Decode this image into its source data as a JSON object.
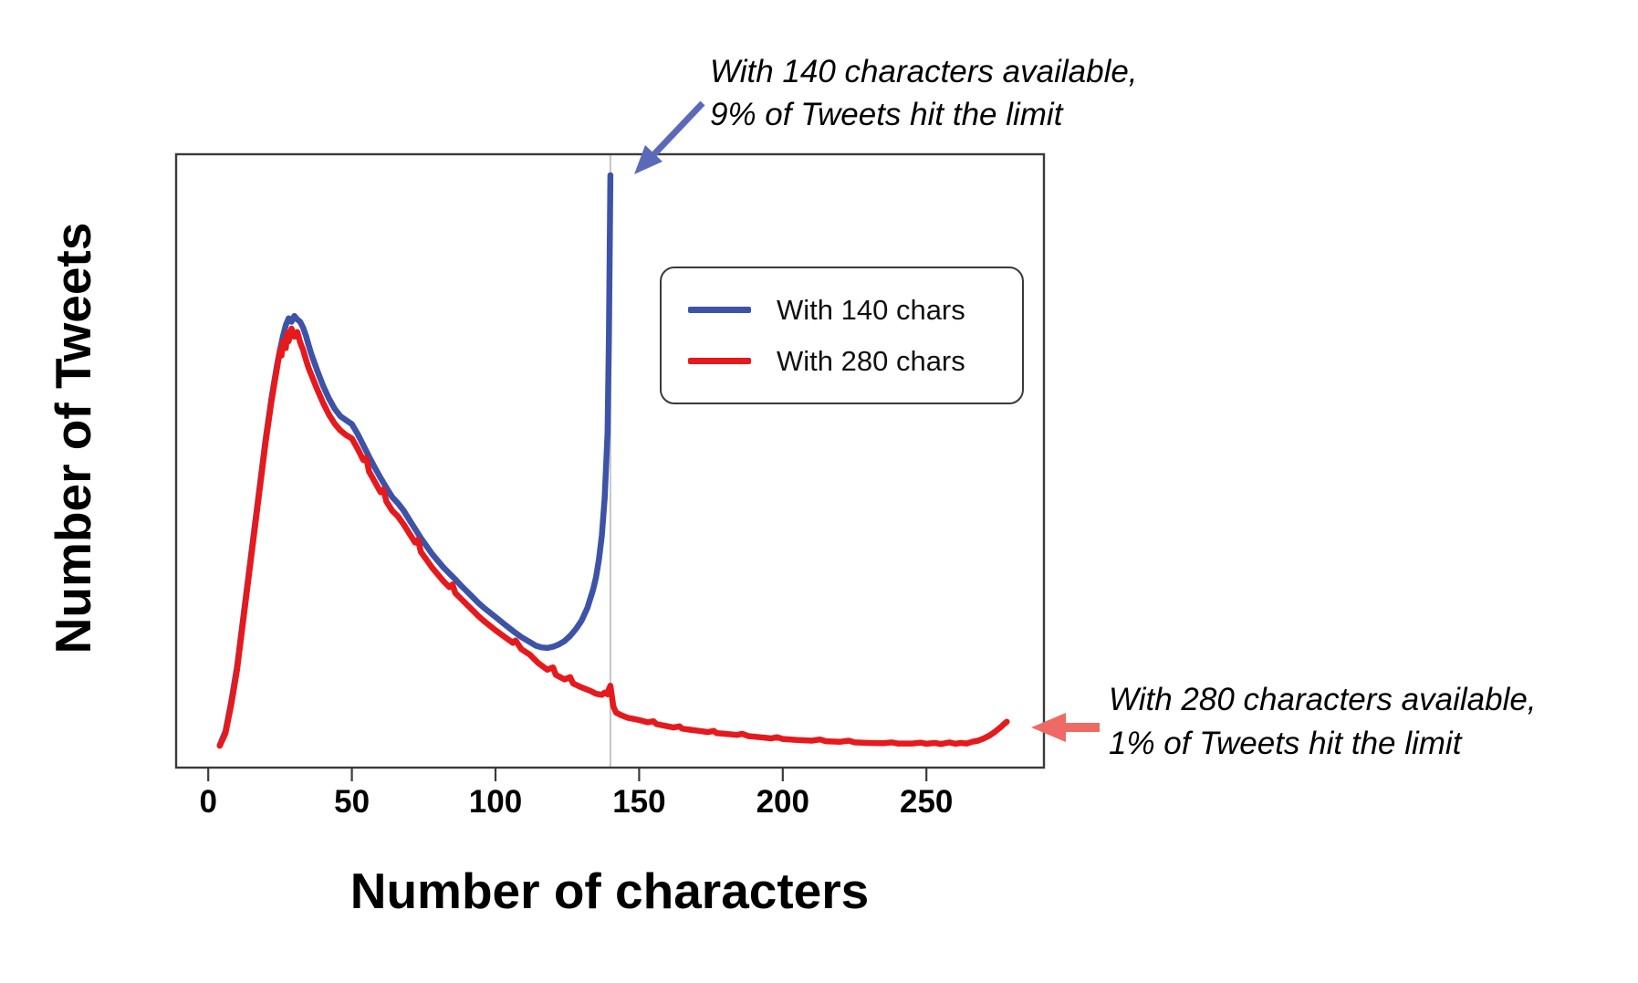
{
  "figure": {
    "background_color": "#ffffff",
    "plot_border_color": "#3a3a3a",
    "limit_gridline_color": "#c9c9c9"
  },
  "legend": {
    "position": "inside-top-right",
    "items": [
      {
        "label": "With 140 chars",
        "color": "#3c53a8"
      },
      {
        "label": "With 280 chars",
        "color": "#e6191c"
      }
    ]
  },
  "annotations": {
    "limit140": {
      "line1": "With 140 characters available,",
      "line2": "9% of Tweets hit the limit",
      "arrow_color": "#5b6ab8",
      "points_to": "spike of blue curve at x=140"
    },
    "limit280": {
      "line1": "With 280 characters available,",
      "line2": "1% of Tweets hit the limit",
      "arrow_color": "#ef6a64",
      "points_to": "uptick of red curve at x=280"
    }
  },
  "chart_data": {
    "type": "line",
    "title": "",
    "xlabel": "Number of characters",
    "ylabel": "Number of Tweets",
    "x_ticks": [
      0,
      50,
      100,
      150,
      200,
      250
    ],
    "xlim": [
      -11,
      291
    ],
    "ylim": [
      0,
      107
    ],
    "grid": false,
    "limit_line_x": 140,
    "y_scale_note": "relative tweet counts, 100 = height of the 140-char spike",
    "series": [
      {
        "name": "With 140 chars",
        "color": "#3c53a8",
        "points": [
          [
            4,
            0.4
          ],
          [
            6,
            2.8
          ],
          [
            8,
            8
          ],
          [
            10,
            14
          ],
          [
            12,
            22
          ],
          [
            14,
            30
          ],
          [
            16,
            38
          ],
          [
            18,
            46
          ],
          [
            20,
            54
          ],
          [
            22,
            61
          ],
          [
            23,
            64
          ],
          [
            24,
            67
          ],
          [
            25,
            69.5
          ],
          [
            26,
            71.8
          ],
          [
            27,
            73.8
          ],
          [
            28,
            75
          ],
          [
            29,
            74.4
          ],
          [
            30,
            75.4
          ],
          [
            31,
            74.8
          ],
          [
            32,
            74.4
          ],
          [
            33,
            73.4
          ],
          [
            34,
            72
          ],
          [
            35,
            70.2
          ],
          [
            36,
            68.6
          ],
          [
            38,
            65.8
          ],
          [
            40,
            63.2
          ],
          [
            42,
            61
          ],
          [
            44,
            59.2
          ],
          [
            46,
            57.9
          ],
          [
            48,
            57.2
          ],
          [
            50,
            56.5
          ],
          [
            52,
            54.8
          ],
          [
            54,
            52.8
          ],
          [
            56,
            50.8
          ],
          [
            58,
            48.9
          ],
          [
            60,
            47.1
          ],
          [
            62,
            45.4
          ],
          [
            64,
            43.8
          ],
          [
            66,
            42.7
          ],
          [
            68,
            41.4
          ],
          [
            70,
            39.8
          ],
          [
            72,
            38.2
          ],
          [
            74,
            36.6
          ],
          [
            76,
            35.2
          ],
          [
            78,
            33.8
          ],
          [
            80,
            32.6
          ],
          [
            82,
            31.4
          ],
          [
            84,
            30.4
          ],
          [
            86,
            29.4
          ],
          [
            88,
            28.3
          ],
          [
            90,
            27.3
          ],
          [
            92,
            26.3
          ],
          [
            94,
            25.3
          ],
          [
            96,
            24.4
          ],
          [
            98,
            23.6
          ],
          [
            100,
            22.8
          ],
          [
            103,
            21.6
          ],
          [
            106,
            20.4
          ],
          [
            109,
            19.3
          ],
          [
            112,
            18.4
          ],
          [
            114,
            17.8
          ],
          [
            116,
            17.5
          ],
          [
            118,
            17.4
          ],
          [
            120,
            17.6
          ],
          [
            122,
            18
          ],
          [
            124,
            18.6
          ],
          [
            126,
            19.5
          ],
          [
            128,
            20.7
          ],
          [
            130,
            22.2
          ],
          [
            132,
            24.4
          ],
          [
            134,
            27.6
          ],
          [
            135,
            29.8
          ],
          [
            136,
            32.8
          ],
          [
            137,
            37
          ],
          [
            138,
            43.5
          ],
          [
            139,
            55
          ],
          [
            139.5,
            72
          ],
          [
            140,
            100
          ]
        ]
      },
      {
        "name": "With 280 chars",
        "color": "#e6191c",
        "points": [
          [
            4,
            0.3
          ],
          [
            6,
            2.5
          ],
          [
            8,
            7.5
          ],
          [
            10,
            13.5
          ],
          [
            12,
            21.5
          ],
          [
            14,
            29.5
          ],
          [
            16,
            37.5
          ],
          [
            18,
            45.5
          ],
          [
            20,
            53.5
          ],
          [
            22,
            60.5
          ],
          [
            23,
            63.5
          ],
          [
            24,
            66.5
          ],
          [
            25,
            69.5
          ],
          [
            25.5,
            68.5
          ],
          [
            26,
            71
          ],
          [
            27,
            69.8
          ],
          [
            27.5,
            72.5
          ],
          [
            28,
            71
          ],
          [
            29,
            73.2
          ],
          [
            30,
            71.8
          ],
          [
            31,
            72.6
          ],
          [
            32,
            70.8
          ],
          [
            33,
            69.5
          ],
          [
            34,
            67.8
          ],
          [
            35,
            66.2
          ],
          [
            36,
            65
          ],
          [
            38,
            62.5
          ],
          [
            40,
            60.2
          ],
          [
            42,
            58.2
          ],
          [
            44,
            56.6
          ],
          [
            46,
            55.4
          ],
          [
            48,
            54.6
          ],
          [
            50,
            54
          ],
          [
            52,
            52.2
          ],
          [
            54,
            50.2
          ],
          [
            55,
            50.6
          ],
          [
            56,
            48.2
          ],
          [
            58,
            46.4
          ],
          [
            60,
            44.6
          ],
          [
            61,
            45.1
          ],
          [
            62,
            43
          ],
          [
            64,
            41.4
          ],
          [
            66,
            40.4
          ],
          [
            68,
            39
          ],
          [
            70,
            37.4
          ],
          [
            72,
            35.8
          ],
          [
            73,
            36.3
          ],
          [
            74,
            34.2
          ],
          [
            76,
            32.8
          ],
          [
            78,
            31.4
          ],
          [
            80,
            30.2
          ],
          [
            82,
            29
          ],
          [
            84,
            28
          ],
          [
            85,
            28.5
          ],
          [
            86,
            27
          ],
          [
            88,
            26
          ],
          [
            90,
            25
          ],
          [
            92,
            24
          ],
          [
            94,
            23
          ],
          [
            96,
            22.1
          ],
          [
            98,
            21.3
          ],
          [
            100,
            20.5
          ],
          [
            103,
            19.4
          ],
          [
            106,
            18.3
          ],
          [
            107,
            18.7
          ],
          [
            109,
            17.2
          ],
          [
            112,
            16.2
          ],
          [
            115,
            14.7
          ],
          [
            118,
            13.6
          ],
          [
            120,
            14
          ],
          [
            121,
            12.7
          ],
          [
            124,
            11.9
          ],
          [
            126,
            12.3
          ],
          [
            127,
            11.2
          ],
          [
            130,
            10.5
          ],
          [
            133,
            9.9
          ],
          [
            135,
            9.4
          ],
          [
            137,
            9.2
          ],
          [
            138,
            9.6
          ],
          [
            139,
            9.3
          ],
          [
            139.5,
            10.2
          ],
          [
            140,
            10.8
          ],
          [
            140.5,
            9
          ],
          [
            141,
            7.2
          ],
          [
            142,
            6.1
          ],
          [
            144,
            5.6
          ],
          [
            146,
            5.2
          ],
          [
            148,
            5
          ],
          [
            150,
            4.8
          ],
          [
            153,
            4.4
          ],
          [
            155,
            4.6
          ],
          [
            156,
            4.1
          ],
          [
            159,
            3.8
          ],
          [
            162,
            3.5
          ],
          [
            164,
            3.7
          ],
          [
            165,
            3.3
          ],
          [
            168,
            3.1
          ],
          [
            171,
            2.9
          ],
          [
            174,
            2.7
          ],
          [
            176,
            2.9
          ],
          [
            177,
            2.5
          ],
          [
            180,
            2.4
          ],
          [
            184,
            2.2
          ],
          [
            186,
            2.4
          ],
          [
            188,
            2
          ],
          [
            192,
            1.8
          ],
          [
            196,
            1.6
          ],
          [
            198,
            1.8
          ],
          [
            200,
            1.5
          ],
          [
            205,
            1.3
          ],
          [
            210,
            1.2
          ],
          [
            213,
            1.4
          ],
          [
            215,
            1.1
          ],
          [
            220,
            1
          ],
          [
            223,
            1.2
          ],
          [
            225,
            0.9
          ],
          [
            230,
            0.8
          ],
          [
            235,
            0.75
          ],
          [
            238,
            0.9
          ],
          [
            240,
            0.7
          ],
          [
            245,
            0.7
          ],
          [
            248,
            0.85
          ],
          [
            250,
            0.65
          ],
          [
            253,
            0.8
          ],
          [
            255,
            0.6
          ],
          [
            258,
            0.9
          ],
          [
            260,
            0.65
          ],
          [
            262,
            0.8
          ],
          [
            264,
            0.7
          ],
          [
            266,
            1
          ],
          [
            268,
            1.2
          ],
          [
            270,
            1.6
          ],
          [
            272,
            2.1
          ],
          [
            274,
            2.8
          ],
          [
            276,
            3.6
          ],
          [
            277,
            4.1
          ],
          [
            278,
            4.5
          ]
        ]
      }
    ]
  }
}
